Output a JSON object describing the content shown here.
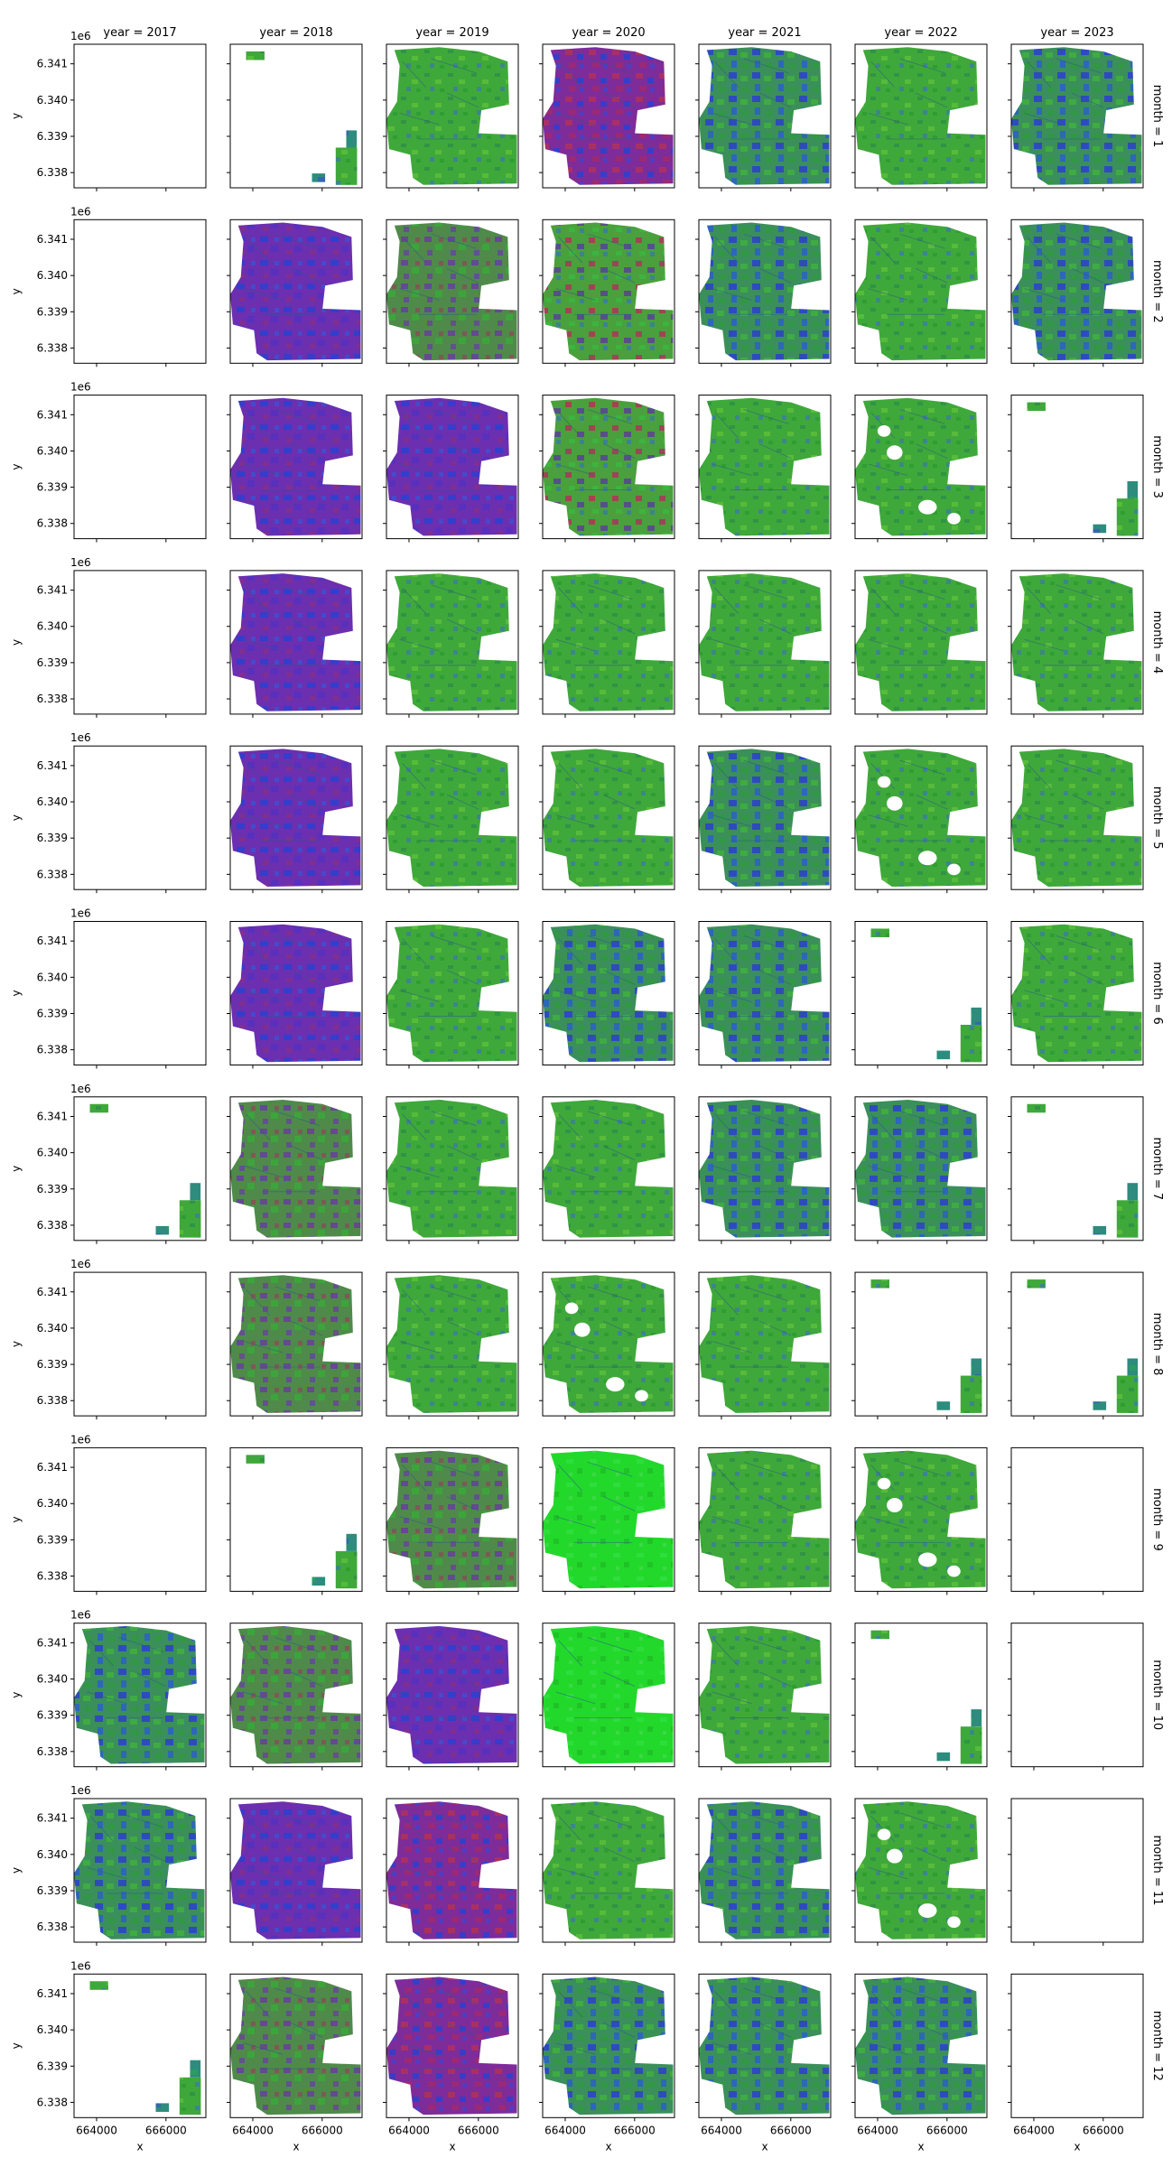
{
  "chart_data": {
    "type": "heatmap",
    "title": "",
    "layout": "faceted image grid (RGB composite rasters)",
    "col_facet": {
      "variable": "year",
      "labels": [
        "year = 2017",
        "year = 2018",
        "year = 2019",
        "year = 2020",
        "year = 2021",
        "year = 2022",
        "year = 2023"
      ]
    },
    "row_facet": {
      "variable": "month",
      "labels": [
        "month = 1",
        "month = 2",
        "month = 3",
        "month = 4",
        "month = 5",
        "month = 6",
        "month = 7",
        "month = 8",
        "month = 9",
        "month = 10",
        "month = 11",
        "month = 12"
      ]
    },
    "xlabel": "x",
    "ylabel": "y",
    "x_ticks": [
      "664000",
      "666000"
    ],
    "x_tick_values": [
      664000,
      666000
    ],
    "y_ticks": [
      "6.341",
      "6.340",
      "6.339",
      "6.338"
    ],
    "y_tick_values": [
      6.341,
      6.34,
      6.339,
      6.338
    ],
    "y_offset_label": "1e6",
    "xlim": [
      663350,
      667150
    ],
    "ylim": [
      6337580,
      6341540
    ],
    "grid": false,
    "legend": "none",
    "palette_hex": {
      "green": "#3fa83a",
      "bright_green": "#22d92b",
      "blue": "#2c3fd0",
      "purple": "#6b2fb0",
      "red": "#b0305a",
      "teal": "#2d8c7d"
    },
    "panels": [
      [
        "empty",
        "sparse",
        "green",
        "purple-red",
        "blue-green",
        "green",
        "blue-green"
      ],
      [
        "empty",
        "purple-blue",
        "green-purple",
        "green-red",
        "blue-green",
        "green",
        "blue-green"
      ],
      [
        "empty",
        "purple-blue",
        "purple-blue",
        "green-red",
        "green",
        "green-holes",
        "sparse"
      ],
      [
        "empty",
        "purple-blue",
        "green",
        "green",
        "green",
        "green",
        "green"
      ],
      [
        "empty",
        "purple-blue",
        "green",
        "green",
        "blue-green",
        "green-holes",
        "green"
      ],
      [
        "empty",
        "purple-blue",
        "green",
        "blue-green",
        "blue-green",
        "sparse",
        "green"
      ],
      [
        "sparse",
        "green-purple",
        "green",
        "green",
        "blue-green",
        "blue-green",
        "sparse"
      ],
      [
        "empty",
        "green-purple",
        "green",
        "green-holes",
        "green",
        "sparse",
        "sparse"
      ],
      [
        "empty",
        "sparse",
        "green-purple",
        "bright-green",
        "green",
        "green-holes",
        "empty"
      ],
      [
        "blue-green",
        "green-purple",
        "purple-blue",
        "bright-green",
        "green",
        "sparse",
        "empty"
      ],
      [
        "blue-green",
        "purple-blue",
        "purple-red",
        "green",
        "blue-green",
        "green-holes",
        "empty"
      ],
      [
        "sparse",
        "green-purple",
        "purple-red",
        "blue-green",
        "blue-green",
        "blue-green",
        "empty"
      ]
    ]
  }
}
